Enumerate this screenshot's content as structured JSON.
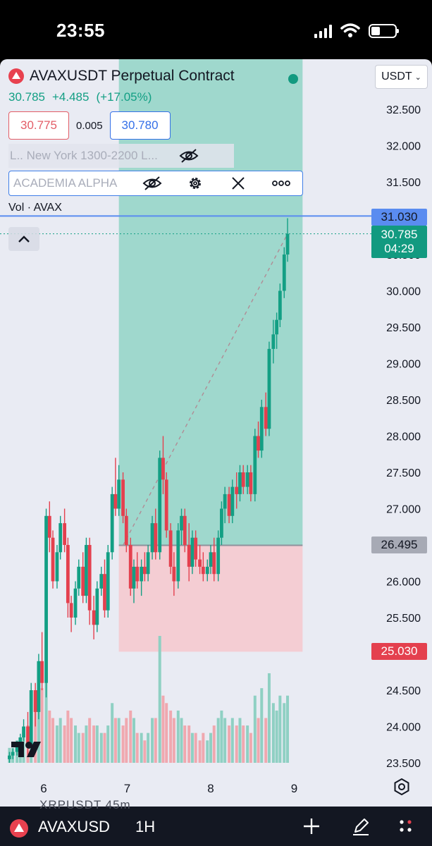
{
  "status_bar": {
    "time": "23:55"
  },
  "chart_header": {
    "symbol_title": "AVAXUSDT Perpetual Contract",
    "last_price": "30.785",
    "change_abs": "+4.485",
    "change_pct": "(+17.05%)",
    "sell_price": "30.775",
    "spread": "0.005",
    "buy_price": "30.780",
    "session_indicator": "L.. New York 1300-2200 L...",
    "custom_indicator": "ACADEMIA ALPHA",
    "volume_indicator": "Vol · AVAX",
    "currency": "USDT"
  },
  "price_tags": {
    "horizontal_line": "31.030",
    "last_price": "30.785",
    "countdown": "04:29",
    "entry": "26.495",
    "stop": "25.030"
  },
  "colors": {
    "up": "#139f84",
    "down": "#e4404e",
    "profit_zone": "#9fd8cd",
    "loss_zone": "#f4cdd3",
    "line": "#5a8cf0",
    "background": "#e9ebf3"
  },
  "chart_data": {
    "type": "candlestick",
    "symbol": "AVAXUSDT",
    "interval": "1H",
    "y_axis": {
      "min": 23.5,
      "max": 32.5,
      "ticks": [
        "32.500",
        "32.000",
        "31.500",
        "31.000",
        "30.500",
        "30.000",
        "29.500",
        "29.000",
        "28.500",
        "28.000",
        "27.500",
        "27.000",
        "26.500",
        "26.000",
        "25.500",
        "25.000",
        "24.500",
        "24.000",
        "23.500"
      ]
    },
    "x_axis": {
      "ticks": [
        "6",
        "7",
        "8",
        "9"
      ]
    },
    "position": {
      "side": "long",
      "entry": 26.495,
      "target": 31.03,
      "stop": 25.03,
      "start_x": 6.9,
      "end_x": 9.1
    },
    "horizontal_line": 31.03,
    "last_price": 30.785,
    "candles": [
      {
        "x": 5.59,
        "o": 23.55,
        "h": 23.65,
        "l": 23.5,
        "c": 23.6,
        "v": 2
      },
      {
        "x": 5.63,
        "o": 23.6,
        "h": 23.7,
        "l": 23.55,
        "c": 23.65,
        "v": 2
      },
      {
        "x": 5.68,
        "o": 23.65,
        "h": 23.8,
        "l": 23.6,
        "c": 23.75,
        "v": 3
      },
      {
        "x": 5.72,
        "o": 23.75,
        "h": 23.9,
        "l": 23.7,
        "c": 23.85,
        "v": 3
      },
      {
        "x": 5.76,
        "o": 23.85,
        "h": 24.1,
        "l": 23.8,
        "c": 24.0,
        "v": 4
      },
      {
        "x": 5.81,
        "o": 24.0,
        "h": 24.2,
        "l": 23.6,
        "c": 23.75,
        "v": 5
      },
      {
        "x": 5.85,
        "o": 23.75,
        "h": 24.6,
        "l": 23.7,
        "c": 24.5,
        "v": 6
      },
      {
        "x": 5.9,
        "o": 24.5,
        "h": 24.6,
        "l": 24.0,
        "c": 24.2,
        "v": 8
      },
      {
        "x": 5.94,
        "o": 24.2,
        "h": 25.0,
        "l": 24.1,
        "c": 24.9,
        "v": 9
      },
      {
        "x": 5.98,
        "o": 24.9,
        "h": 25.3,
        "l": 24.5,
        "c": 24.6,
        "v": 10
      },
      {
        "x": 6.03,
        "o": 24.6,
        "h": 27.0,
        "l": 24.4,
        "c": 26.9,
        "v": 16
      },
      {
        "x": 6.07,
        "o": 26.9,
        "h": 27.1,
        "l": 26.4,
        "c": 26.6,
        "v": 7
      },
      {
        "x": 6.11,
        "o": 26.6,
        "h": 26.7,
        "l": 25.9,
        "c": 26.0,
        "v": 6
      },
      {
        "x": 6.16,
        "o": 26.0,
        "h": 26.5,
        "l": 25.9,
        "c": 26.4,
        "v": 5
      },
      {
        "x": 6.2,
        "o": 26.4,
        "h": 26.9,
        "l": 26.3,
        "c": 26.8,
        "v": 6
      },
      {
        "x": 6.25,
        "o": 26.8,
        "h": 27.0,
        "l": 26.4,
        "c": 26.5,
        "v": 5
      },
      {
        "x": 6.29,
        "o": 26.5,
        "h": 26.6,
        "l": 25.5,
        "c": 25.7,
        "v": 7
      },
      {
        "x": 6.33,
        "o": 25.7,
        "h": 25.8,
        "l": 25.3,
        "c": 25.5,
        "v": 6
      },
      {
        "x": 6.38,
        "o": 25.5,
        "h": 26.0,
        "l": 25.4,
        "c": 25.9,
        "v": 5
      },
      {
        "x": 6.42,
        "o": 25.9,
        "h": 26.3,
        "l": 25.8,
        "c": 26.2,
        "v": 4
      },
      {
        "x": 6.47,
        "o": 26.2,
        "h": 26.4,
        "l": 25.7,
        "c": 25.8,
        "v": 4
      },
      {
        "x": 6.51,
        "o": 25.8,
        "h": 26.6,
        "l": 25.7,
        "c": 26.5,
        "v": 5
      },
      {
        "x": 6.55,
        "o": 26.5,
        "h": 26.6,
        "l": 25.4,
        "c": 25.6,
        "v": 6
      },
      {
        "x": 6.6,
        "o": 25.6,
        "h": 25.8,
        "l": 25.2,
        "c": 25.4,
        "v": 5
      },
      {
        "x": 6.64,
        "o": 25.4,
        "h": 26.0,
        "l": 25.3,
        "c": 25.9,
        "v": 5
      },
      {
        "x": 6.69,
        "o": 25.9,
        "h": 26.2,
        "l": 25.8,
        "c": 26.1,
        "v": 4
      },
      {
        "x": 6.73,
        "o": 26.1,
        "h": 26.3,
        "l": 25.5,
        "c": 25.6,
        "v": 4
      },
      {
        "x": 6.77,
        "o": 25.6,
        "h": 26.5,
        "l": 25.5,
        "c": 26.4,
        "v": 5
      },
      {
        "x": 6.82,
        "o": 26.4,
        "h": 27.3,
        "l": 26.3,
        "c": 27.2,
        "v": 8
      },
      {
        "x": 6.86,
        "o": 27.2,
        "h": 27.7,
        "l": 26.9,
        "c": 27.0,
        "v": 6
      },
      {
        "x": 6.9,
        "o": 27.0,
        "h": 27.6,
        "l": 26.9,
        "c": 27.4,
        "v": 6
      },
      {
        "x": 6.95,
        "o": 27.4,
        "h": 27.5,
        "l": 26.8,
        "c": 26.9,
        "v": 5
      },
      {
        "x": 6.99,
        "o": 26.9,
        "h": 27.0,
        "l": 26.4,
        "c": 26.5,
        "v": 6
      },
      {
        "x": 7.04,
        "o": 26.5,
        "h": 26.6,
        "l": 25.8,
        "c": 25.9,
        "v": 7
      },
      {
        "x": 7.08,
        "o": 25.9,
        "h": 26.3,
        "l": 25.7,
        "c": 26.2,
        "v": 6
      },
      {
        "x": 7.12,
        "o": 26.2,
        "h": 26.4,
        "l": 25.9,
        "c": 26.0,
        "v": 4
      },
      {
        "x": 7.17,
        "o": 26.0,
        "h": 26.3,
        "l": 25.8,
        "c": 26.2,
        "v": 4
      },
      {
        "x": 7.21,
        "o": 26.2,
        "h": 26.4,
        "l": 26.0,
        "c": 26.1,
        "v": 3
      },
      {
        "x": 7.25,
        "o": 26.1,
        "h": 26.5,
        "l": 26.0,
        "c": 26.4,
        "v": 4
      },
      {
        "x": 7.3,
        "o": 26.4,
        "h": 26.9,
        "l": 26.3,
        "c": 26.8,
        "v": 6
      },
      {
        "x": 7.34,
        "o": 26.8,
        "h": 27.0,
        "l": 26.3,
        "c": 26.4,
        "v": 6
      },
      {
        "x": 7.39,
        "o": 26.4,
        "h": 27.8,
        "l": 26.3,
        "c": 27.7,
        "v": 17
      },
      {
        "x": 7.43,
        "o": 27.7,
        "h": 28.0,
        "l": 27.2,
        "c": 27.4,
        "v": 9
      },
      {
        "x": 7.47,
        "o": 27.4,
        "h": 27.5,
        "l": 26.6,
        "c": 26.7,
        "v": 8
      },
      {
        "x": 7.52,
        "o": 26.7,
        "h": 26.8,
        "l": 26.1,
        "c": 26.2,
        "v": 7
      },
      {
        "x": 7.56,
        "o": 26.2,
        "h": 26.4,
        "l": 25.8,
        "c": 26.0,
        "v": 6
      },
      {
        "x": 7.61,
        "o": 26.0,
        "h": 26.8,
        "l": 25.9,
        "c": 26.7,
        "v": 7
      },
      {
        "x": 7.65,
        "o": 26.7,
        "h": 27.0,
        "l": 26.5,
        "c": 26.9,
        "v": 6
      },
      {
        "x": 7.69,
        "o": 26.9,
        "h": 27.0,
        "l": 26.4,
        "c": 26.5,
        "v": 5
      },
      {
        "x": 7.74,
        "o": 26.5,
        "h": 26.8,
        "l": 26.0,
        "c": 26.2,
        "v": 5
      },
      {
        "x": 7.78,
        "o": 26.2,
        "h": 26.7,
        "l": 26.1,
        "c": 26.6,
        "v": 4
      },
      {
        "x": 7.82,
        "o": 26.6,
        "h": 26.7,
        "l": 26.2,
        "c": 26.3,
        "v": 4
      },
      {
        "x": 7.87,
        "o": 26.3,
        "h": 26.5,
        "l": 26.1,
        "c": 26.2,
        "v": 3
      },
      {
        "x": 7.91,
        "o": 26.2,
        "h": 26.4,
        "l": 26.0,
        "c": 26.1,
        "v": 4
      },
      {
        "x": 7.96,
        "o": 26.1,
        "h": 26.3,
        "l": 26.0,
        "c": 26.2,
        "v": 3
      },
      {
        "x": 8.0,
        "o": 26.2,
        "h": 26.5,
        "l": 26.1,
        "c": 26.4,
        "v": 4
      },
      {
        "x": 8.04,
        "o": 26.4,
        "h": 26.6,
        "l": 26.0,
        "c": 26.1,
        "v": 5
      },
      {
        "x": 8.09,
        "o": 26.1,
        "h": 26.7,
        "l": 26.0,
        "c": 26.6,
        "v": 6
      },
      {
        "x": 8.13,
        "o": 26.6,
        "h": 27.1,
        "l": 26.5,
        "c": 27.0,
        "v": 7
      },
      {
        "x": 8.17,
        "o": 27.0,
        "h": 27.3,
        "l": 26.8,
        "c": 27.2,
        "v": 6
      },
      {
        "x": 8.22,
        "o": 27.2,
        "h": 27.3,
        "l": 26.8,
        "c": 26.9,
        "v": 5
      },
      {
        "x": 8.26,
        "o": 26.9,
        "h": 27.4,
        "l": 26.8,
        "c": 27.3,
        "v": 6
      },
      {
        "x": 8.31,
        "o": 27.3,
        "h": 27.5,
        "l": 27.0,
        "c": 27.2,
        "v": 5
      },
      {
        "x": 8.35,
        "o": 27.2,
        "h": 27.6,
        "l": 27.1,
        "c": 27.5,
        "v": 6
      },
      {
        "x": 8.39,
        "o": 27.5,
        "h": 27.6,
        "l": 27.2,
        "c": 27.3,
        "v": 5
      },
      {
        "x": 8.44,
        "o": 27.3,
        "h": 27.6,
        "l": 27.2,
        "c": 27.5,
        "v": 5
      },
      {
        "x": 8.48,
        "o": 27.5,
        "h": 27.6,
        "l": 27.1,
        "c": 27.2,
        "v": 4
      },
      {
        "x": 8.53,
        "o": 27.2,
        "h": 28.1,
        "l": 27.1,
        "c": 28.0,
        "v": 9
      },
      {
        "x": 8.57,
        "o": 28.0,
        "h": 28.2,
        "l": 27.7,
        "c": 27.8,
        "v": 6
      },
      {
        "x": 8.61,
        "o": 27.8,
        "h": 28.5,
        "l": 27.7,
        "c": 28.4,
        "v": 10
      },
      {
        "x": 8.66,
        "o": 28.4,
        "h": 28.6,
        "l": 28.0,
        "c": 28.1,
        "v": 6
      },
      {
        "x": 8.7,
        "o": 28.1,
        "h": 29.3,
        "l": 28.0,
        "c": 29.2,
        "v": 12
      },
      {
        "x": 8.75,
        "o": 29.2,
        "h": 29.6,
        "l": 29.0,
        "c": 29.4,
        "v": 8
      },
      {
        "x": 8.79,
        "o": 29.4,
        "h": 29.7,
        "l": 29.2,
        "c": 29.6,
        "v": 7
      },
      {
        "x": 8.83,
        "o": 29.6,
        "h": 30.1,
        "l": 29.5,
        "c": 30.0,
        "v": 9
      },
      {
        "x": 8.88,
        "o": 30.0,
        "h": 30.6,
        "l": 29.9,
        "c": 30.5,
        "v": 8
      },
      {
        "x": 8.92,
        "o": 30.5,
        "h": 31.0,
        "l": 30.4,
        "c": 30.785,
        "v": 9
      }
    ]
  },
  "bottom_bar": {
    "ghost_text": "XRPUSDT   45m",
    "symbol": "AVAXUSD",
    "interval": "1H"
  }
}
